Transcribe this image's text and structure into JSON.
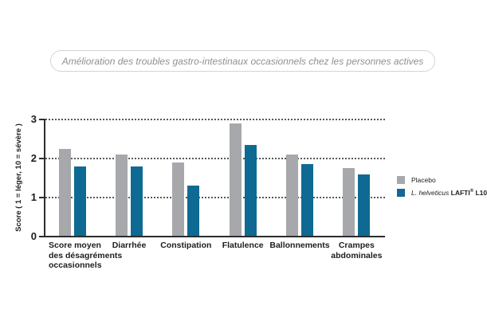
{
  "title": {
    "text": "Amélioration des troubles gastro-intestinaux occasionnels chez les personnes actives"
  },
  "chart_data": {
    "type": "bar",
    "title": "Amélioration des troubles gastro-intestinaux occasionnels chez les personnes actives",
    "categories": [
      "Score moyen des désagréments occasionnels",
      "Diarrhée",
      "Constipation",
      "Flatulence",
      "Ballonnements",
      "Crampes abdominales"
    ],
    "categories_display": [
      [
        "Score moyen",
        "des désagréments",
        "occasionnels"
      ],
      [
        "Diarrhée"
      ],
      [
        "Constipation"
      ],
      [
        "Flatulence"
      ],
      [
        "Ballonnements"
      ],
      [
        "Crampes",
        "abdominales"
      ]
    ],
    "series": [
      {
        "name": "Placebo",
        "color": "#a6a8ab",
        "values": [
          2.25,
          2.1,
          1.9,
          2.9,
          2.1,
          1.75
        ]
      },
      {
        "name": "L. helveticus LAFTI® L10",
        "color": "#0e6a92",
        "values": [
          1.8,
          1.8,
          1.3,
          2.35,
          1.85,
          1.6
        ]
      }
    ],
    "xlabel": "",
    "ylabel": "Score ( 1 = léger, 10 = sévère )",
    "yticks": [
      0,
      1,
      2,
      3
    ],
    "ylim": [
      0,
      3
    ],
    "grid": "horizontal dotted at 1, 2, 3",
    "legend_position": "right"
  },
  "legend": {
    "items": [
      {
        "label": "Placebo",
        "color": "#a6a8ab"
      },
      {
        "label_italic": "L. helveticus",
        "label_bold_pre": "LAFTI",
        "label_sup": "®",
        "label_bold_post": " L10",
        "color": "#0e6a92"
      }
    ]
  },
  "colors": {
    "placebo": "#a6a8ab",
    "lafti_blue": "#0e6a92",
    "axis": "#2d2d2d",
    "gridline": "#58595b",
    "title_text": "#8e9093",
    "title_border": "#d4d4d4"
  }
}
